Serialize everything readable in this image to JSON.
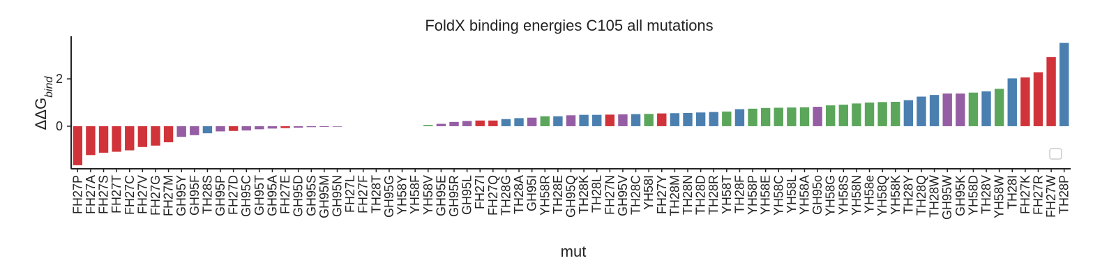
{
  "chart_data": {
    "type": "bar",
    "title": "FoldX binding energies C105 all mutations",
    "xlabel": "mut",
    "ylabel": "ΔΔG",
    "ylabel_sub": "bind",
    "ylim": [
      -1.8,
      3.8
    ],
    "yticks": [
      0,
      2
    ],
    "grid": false,
    "legend": "bottom-right (empty)",
    "colors": {
      "red": "#d1333a",
      "blue": "#4a7fb0",
      "green": "#5ba65b",
      "purple": "#955da3"
    },
    "categories": [
      "FH27P",
      "FH27A",
      "FH27S",
      "FH27T",
      "FH27C",
      "FH27V",
      "FH27G",
      "FH27M",
      "GH95Y",
      "GH95F",
      "TH28S",
      "GH95P",
      "FH27D",
      "GH95C",
      "GH95T",
      "GH95A",
      "FH27E",
      "GH95D",
      "GH95S",
      "GH95M",
      "GH95N",
      "FH27L",
      "FH27F",
      "TH28T",
      "GH95G",
      "YH58Y",
      "YH58F",
      "YH58V",
      "GH95E",
      "GH95R",
      "GH95L",
      "FH27I",
      "FH27Q",
      "TH28G",
      "TH28A",
      "GH95I",
      "YH58R",
      "TH28E",
      "GH95Q",
      "TH28K",
      "TH28L",
      "FH27N",
      "GH95V",
      "TH28C",
      "YH58I",
      "FH27Y",
      "TH28M",
      "TH28N",
      "TH28D",
      "TH28R",
      "YH58T",
      "TH28F",
      "YH58P",
      "YH58E",
      "YH58C",
      "YH58L",
      "YH58A",
      "GH95o",
      "YH58G",
      "YH58S",
      "YH58N",
      "YH58e",
      "YH58Q",
      "YH58K",
      "TH28Y",
      "TH28Q",
      "TH28W",
      "GH95W",
      "GH95K",
      "YH58D",
      "TH28V",
      "YH58W",
      "TH28I",
      "FH27K",
      "FH27R",
      "FH27W",
      "TH28P"
    ],
    "values": [
      -1.65,
      -1.22,
      -1.12,
      -1.08,
      -1.02,
      -0.88,
      -0.82,
      -0.68,
      -0.45,
      -0.38,
      -0.3,
      -0.22,
      -0.2,
      -0.18,
      -0.13,
      -0.1,
      -0.08,
      -0.06,
      -0.04,
      -0.03,
      -0.02,
      0.0,
      0.0,
      0.0,
      0.0,
      0.0,
      0.0,
      0.05,
      0.1,
      0.18,
      0.22,
      0.24,
      0.24,
      0.3,
      0.34,
      0.36,
      0.42,
      0.42,
      0.46,
      0.48,
      0.48,
      0.49,
      0.5,
      0.51,
      0.52,
      0.54,
      0.55,
      0.56,
      0.58,
      0.6,
      0.62,
      0.72,
      0.74,
      0.77,
      0.78,
      0.79,
      0.8,
      0.82,
      0.88,
      0.91,
      0.96,
      1.0,
      1.02,
      1.03,
      1.1,
      1.25,
      1.32,
      1.38,
      1.38,
      1.42,
      1.47,
      1.58,
      2.02,
      2.06,
      2.28,
      2.92,
      3.52
    ],
    "bar_colors": [
      "red",
      "red",
      "red",
      "red",
      "red",
      "red",
      "red",
      "red",
      "purple",
      "purple",
      "blue",
      "purple",
      "red",
      "purple",
      "purple",
      "purple",
      "red",
      "purple",
      "purple",
      "purple",
      "purple",
      "red",
      "red",
      "blue",
      "purple",
      "green",
      "green",
      "green",
      "purple",
      "purple",
      "purple",
      "red",
      "red",
      "blue",
      "blue",
      "purple",
      "green",
      "blue",
      "purple",
      "blue",
      "blue",
      "red",
      "purple",
      "blue",
      "green",
      "red",
      "blue",
      "blue",
      "blue",
      "blue",
      "green",
      "blue",
      "green",
      "green",
      "green",
      "green",
      "green",
      "purple",
      "green",
      "green",
      "green",
      "green",
      "green",
      "green",
      "blue",
      "blue",
      "blue",
      "purple",
      "purple",
      "green",
      "blue",
      "green",
      "blue",
      "red",
      "red",
      "red",
      "blue"
    ]
  }
}
